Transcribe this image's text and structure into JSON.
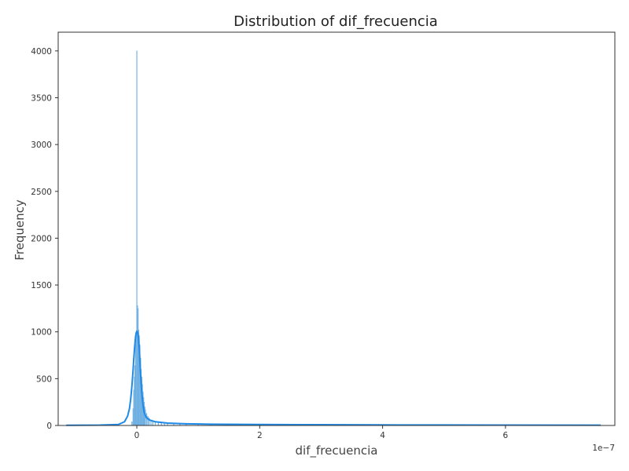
{
  "chart_data": {
    "type": "bar",
    "title": "Distribution of dif_frecuencia",
    "xlabel": "dif_frecuencia",
    "ylabel": "Frequency",
    "x_offset_label": "1e−7",
    "xlim": [
      -1.28,
      7.78
    ],
    "ylim": [
      0,
      4200
    ],
    "x_ticks": [
      0,
      2,
      4,
      6
    ],
    "x_tick_labels": [
      "0",
      "2",
      "4",
      "6"
    ],
    "y_ticks": [
      0,
      500,
      1000,
      1500,
      2000,
      2500,
      3000,
      3500,
      4000
    ],
    "y_tick_labels": [
      "0",
      "500",
      "1000",
      "1500",
      "2000",
      "2500",
      "3000",
      "3500",
      "4000"
    ],
    "grid": false,
    "colors": {
      "bar_fill": "#8ec1ea",
      "bar_stroke": "#5fa7de",
      "kde_line": "#1f8ae6",
      "axes": "#333333"
    },
    "histogram": {
      "x_units": "1e-7",
      "bins": [
        {
          "x": -0.08,
          "count": 40
        },
        {
          "x": -0.06,
          "count": 180
        },
        {
          "x": -0.05,
          "count": 380
        },
        {
          "x": -0.04,
          "count": 520
        },
        {
          "x": -0.03,
          "count": 640
        },
        {
          "x": -0.02,
          "count": 860
        },
        {
          "x": -0.01,
          "count": 980
        },
        {
          "x": 0.0,
          "count": 4000
        },
        {
          "x": 0.01,
          "count": 1280
        },
        {
          "x": 0.02,
          "count": 1250
        },
        {
          "x": 0.03,
          "count": 1020
        },
        {
          "x": 0.04,
          "count": 960
        },
        {
          "x": 0.05,
          "count": 860
        },
        {
          "x": 0.06,
          "count": 720
        },
        {
          "x": 0.07,
          "count": 600
        },
        {
          "x": 0.08,
          "count": 520
        },
        {
          "x": 0.09,
          "count": 440
        },
        {
          "x": 0.1,
          "count": 360
        },
        {
          "x": 0.11,
          "count": 300
        },
        {
          "x": 0.12,
          "count": 250
        },
        {
          "x": 0.13,
          "count": 200
        },
        {
          "x": 0.14,
          "count": 170
        },
        {
          "x": 0.16,
          "count": 130
        },
        {
          "x": 0.18,
          "count": 100
        },
        {
          "x": 0.2,
          "count": 80
        },
        {
          "x": 0.23,
          "count": 60
        },
        {
          "x": 0.26,
          "count": 50
        },
        {
          "x": 0.3,
          "count": 40
        },
        {
          "x": 0.35,
          "count": 35
        },
        {
          "x": 0.4,
          "count": 30
        },
        {
          "x": 0.45,
          "count": 28
        },
        {
          "x": 0.5,
          "count": 25
        },
        {
          "x": 0.6,
          "count": 20
        },
        {
          "x": 0.7,
          "count": 18
        },
        {
          "x": 0.8,
          "count": 15
        },
        {
          "x": 1.0,
          "count": 12
        },
        {
          "x": 1.2,
          "count": 10
        },
        {
          "x": 1.5,
          "count": 8
        },
        {
          "x": 2.0,
          "count": 6
        },
        {
          "x": 2.5,
          "count": 5
        },
        {
          "x": 3.0,
          "count": 4
        },
        {
          "x": 3.5,
          "count": 4
        },
        {
          "x": 4.0,
          "count": 3
        },
        {
          "x": 5.0,
          "count": 2
        },
        {
          "x": 6.0,
          "count": 2
        },
        {
          "x": 7.0,
          "count": 1
        }
      ]
    },
    "kde": {
      "x": [
        -1.15,
        -0.6,
        -0.3,
        -0.2,
        -0.15,
        -0.12,
        -0.1,
        -0.08,
        -0.06,
        -0.05,
        -0.04,
        -0.03,
        -0.02,
        -0.01,
        0.0,
        0.01,
        0.02,
        0.03,
        0.04,
        0.05,
        0.06,
        0.08,
        0.1,
        0.12,
        0.15,
        0.18,
        0.22,
        0.3,
        0.5,
        0.8,
        1.2,
        2.0,
        3.0,
        4.0,
        5.0,
        6.0,
        7.55
      ],
      "y": [
        2,
        4,
        10,
        40,
        100,
        180,
        280,
        420,
        600,
        710,
        800,
        880,
        950,
        990,
        1005,
        1000,
        970,
        900,
        820,
        700,
        560,
        360,
        220,
        140,
        90,
        70,
        55,
        40,
        25,
        18,
        14,
        10,
        8,
        6,
        5,
        4,
        3
      ]
    }
  }
}
